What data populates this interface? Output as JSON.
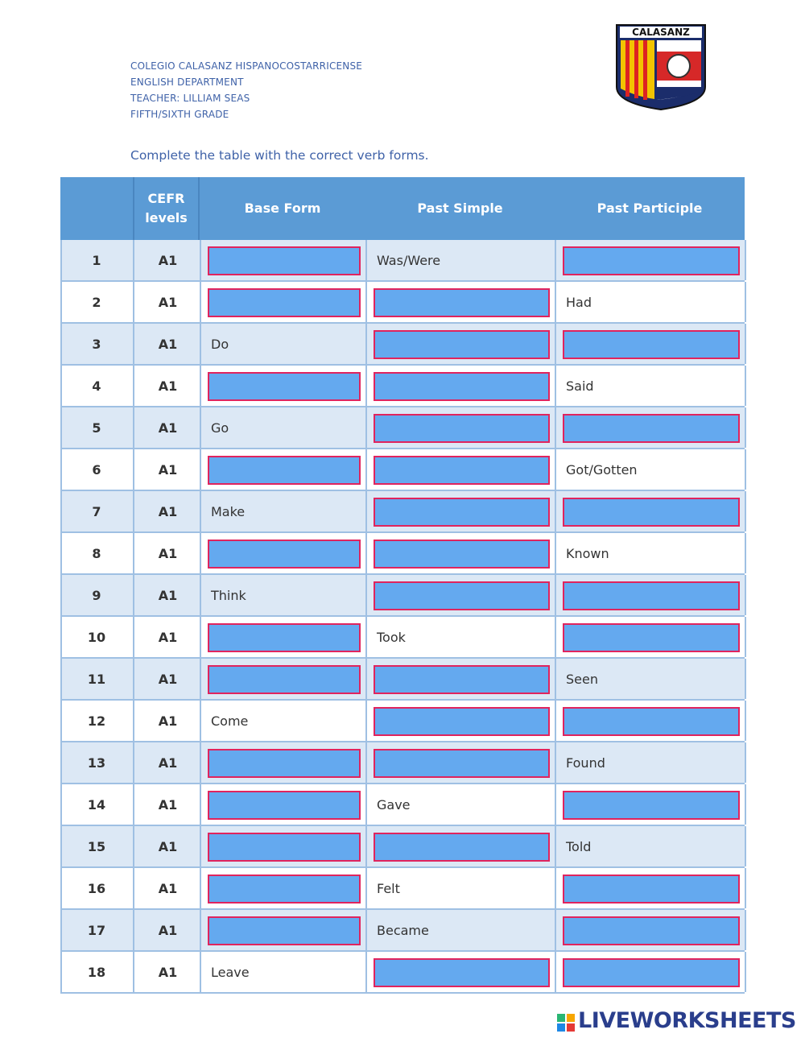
{
  "header": {
    "lines": [
      "COLEGIO CALASANZ HISPANOCOSTARRICENSE",
      "ENGLISH DEPARTMENT",
      "TEACHER:  LILLIAM SEAS",
      "FIFTH/SIXTH GRADE"
    ],
    "logo": "CALASANZ"
  },
  "instruction": "Complete the table with the correct verb forms.",
  "table": {
    "columns": [
      "",
      "CEFR levels",
      "Base Form",
      "Past Simple",
      "Past Participle"
    ],
    "rows": [
      [
        "1",
        "A1",
        null,
        "Was/Were",
        null
      ],
      [
        "2",
        "A1",
        null,
        null,
        "Had"
      ],
      [
        "3",
        "A1",
        "Do",
        null,
        null
      ],
      [
        "4",
        "A1",
        null,
        null,
        "Said"
      ],
      [
        "5",
        "A1",
        "Go",
        null,
        null
      ],
      [
        "6",
        "A1",
        null,
        null,
        "Got/Gotten"
      ],
      [
        "7",
        "A1",
        "Make",
        null,
        null
      ],
      [
        "8",
        "A1",
        null,
        null,
        "Known"
      ],
      [
        "9",
        "A1",
        "Think",
        null,
        null
      ],
      [
        "10",
        "A1",
        null,
        "Took",
        null
      ],
      [
        "11",
        "A1",
        null,
        null,
        "Seen"
      ],
      [
        "12",
        "A1",
        "Come",
        null,
        null
      ],
      [
        "13",
        "A1",
        null,
        null,
        "Found"
      ],
      [
        "14",
        "A1",
        null,
        "Gave",
        null
      ],
      [
        "15",
        "A1",
        null,
        null,
        "Told"
      ],
      [
        "16",
        "A1",
        null,
        "Felt",
        null
      ],
      [
        "17",
        "A1",
        null,
        "Became",
        null
      ],
      [
        "18",
        "A1",
        "Leave",
        null,
        null
      ]
    ]
  },
  "footer": "LIVEWORKSHEETS"
}
